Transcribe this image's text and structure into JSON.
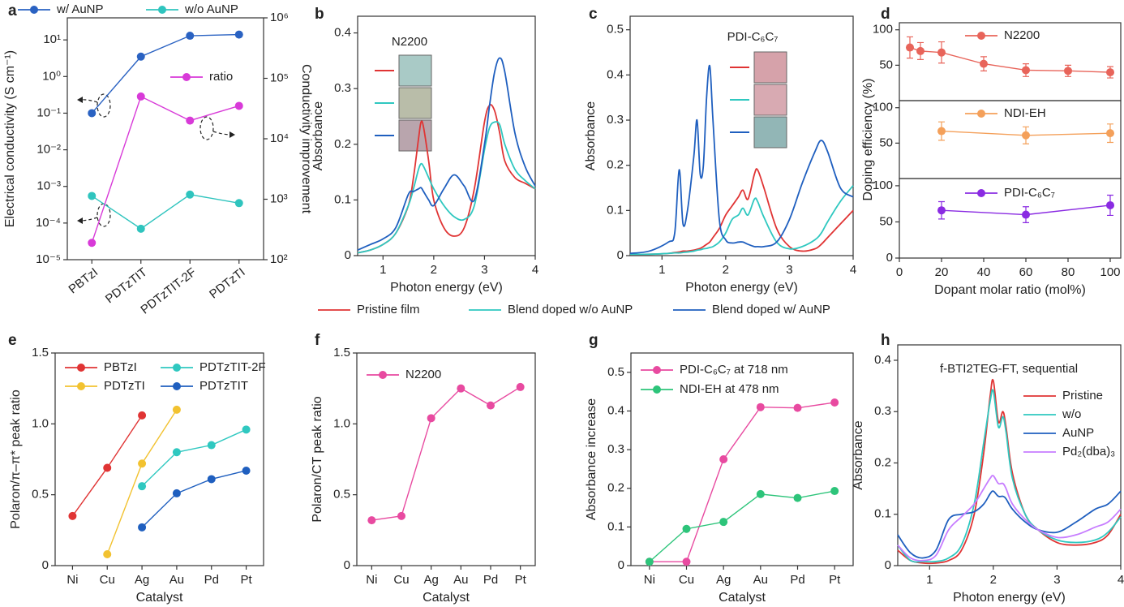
{
  "chart_data": [
    {
      "type": "line",
      "label": "a",
      "legend": "top",
      "categories": [
        "PBTzI",
        "PDTzTIT",
        "PDTzTIT-2F",
        "PDTzTI"
      ],
      "y_scale": "log",
      "ylim": [
        1e-05,
        40
      ],
      "yticks": [
        {
          "value": 1e-05,
          "label": "10⁻⁵"
        },
        {
          "value": 0.0001,
          "label": "10⁻⁴"
        },
        {
          "value": 0.001,
          "label": "10⁻³"
        },
        {
          "value": 0.01,
          "label": "10⁻²"
        },
        {
          "value": 0.1,
          "label": "10⁻¹"
        },
        {
          "value": 1,
          "label": "10⁰"
        },
        {
          "value": 10,
          "label": "10¹"
        }
      ],
      "y2_scale": "log",
      "y2lim": [
        100,
        1000000
      ],
      "y2ticks": [
        {
          "value": 100,
          "label": "10²"
        },
        {
          "value": 1000,
          "label": "10³"
        },
        {
          "value": 10000,
          "label": "10⁴"
        },
        {
          "value": 100000,
          "label": "10⁵"
        },
        {
          "value": 1000000,
          "label": "10⁶"
        }
      ],
      "y_label": "Electrical conductivity (S cm⁻¹)",
      "y2_label": "Conductivity improvement",
      "series": [
        {
          "name": "w/ AuNP",
          "color": "#2a62c2",
          "markers": true,
          "values": [
            0.1,
            3.5,
            13,
            14
          ]
        },
        {
          "name": "w/o AuNP",
          "color": "#2fc4be",
          "markers": true,
          "values": [
            0.00055,
            7e-05,
            0.0006,
            0.00035
          ]
        },
        {
          "name": "ratio",
          "color": "#d83ad8",
          "markers": true,
          "axis": "y2",
          "values": [
            190,
            50000,
            20000,
            35000
          ]
        }
      ]
    },
    {
      "type": "line",
      "label": "b",
      "title": "N2200",
      "legend": "bottom",
      "x": [
        0.5,
        0.75,
        1,
        1.25,
        1.5,
        1.6,
        1.7,
        1.75,
        1.8,
        1.9,
        2,
        2.2,
        2.4,
        2.6,
        2.8,
        3,
        3.1,
        3.2,
        3.3,
        3.4,
        3.6,
        3.8,
        4
      ],
      "xlim": [
        0.5,
        4
      ],
      "xticks": [
        1,
        2,
        3,
        4
      ],
      "ylim": [
        0,
        0.43
      ],
      "yticks": [
        0,
        0.1,
        0.2,
        0.3,
        0.4
      ],
      "x_label": "Photon energy (eV)",
      "y_label": "Absorbance",
      "series": [
        {
          "name": "Pristine film",
          "color": "#e03434",
          "values": [
            0.005,
            0.01,
            0.02,
            0.04,
            0.09,
            0.14,
            0.21,
            0.24,
            0.23,
            0.17,
            0.1,
            0.05,
            0.035,
            0.05,
            0.12,
            0.24,
            0.27,
            0.26,
            0.22,
            0.17,
            0.14,
            0.13,
            0.12
          ]
        },
        {
          "name": "Blend doped w/o AuNP",
          "color": "#2fc8c0",
          "values": [
            0.005,
            0.01,
            0.02,
            0.04,
            0.09,
            0.12,
            0.155,
            0.165,
            0.16,
            0.14,
            0.12,
            0.09,
            0.07,
            0.065,
            0.09,
            0.19,
            0.23,
            0.24,
            0.235,
            0.2,
            0.155,
            0.135,
            0.12
          ]
        },
        {
          "name": "Blend doped w/ AuNP",
          "color": "#1f5fbf",
          "values": [
            0.01,
            0.02,
            0.03,
            0.05,
            0.11,
            0.115,
            0.12,
            0.122,
            0.115,
            0.1,
            0.09,
            0.12,
            0.145,
            0.125,
            0.1,
            0.2,
            0.27,
            0.33,
            0.355,
            0.33,
            0.22,
            0.16,
            0.125
          ]
        }
      ]
    },
    {
      "type": "line",
      "label": "c",
      "title": "PDI-C₆C₇",
      "x": [
        0.5,
        0.8,
        1.1,
        1.2,
        1.27,
        1.33,
        1.4,
        1.5,
        1.55,
        1.6,
        1.65,
        1.7,
        1.75,
        1.8,
        1.9,
        2.0,
        2.1,
        2.2,
        2.27,
        2.35,
        2.45,
        2.5,
        2.6,
        2.8,
        3.0,
        3.2,
        3.4,
        3.5,
        3.6,
        3.8,
        4.0
      ],
      "xlim": [
        0.5,
        4
      ],
      "xticks": [
        1,
        2,
        3,
        4
      ],
      "ylim": [
        0,
        0.53
      ],
      "yticks": [
        0,
        0.1,
        0.2,
        0.3,
        0.4,
        0.5
      ],
      "x_label": "Photon energy (eV)",
      "y_label": "Absorbance",
      "series": [
        {
          "color": "#e03434",
          "values": [
            0.003,
            0.003,
            0.005,
            0.007,
            0.008,
            0.01,
            0.01,
            0.012,
            0.014,
            0.016,
            0.02,
            0.025,
            0.03,
            0.04,
            0.06,
            0.09,
            0.11,
            0.13,
            0.145,
            0.125,
            0.18,
            0.19,
            0.15,
            0.06,
            0.02,
            0.01,
            0.015,
            0.025,
            0.04,
            0.07,
            0.1
          ]
        },
        {
          "color": "#2fc8c0",
          "values": [
            0.003,
            0.003,
            0.005,
            0.006,
            0.006,
            0.007,
            0.008,
            0.01,
            0.012,
            0.013,
            0.015,
            0.016,
            0.018,
            0.02,
            0.03,
            0.05,
            0.08,
            0.09,
            0.105,
            0.09,
            0.125,
            0.12,
            0.085,
            0.03,
            0.015,
            0.02,
            0.035,
            0.05,
            0.075,
            0.12,
            0.155
          ]
        },
        {
          "color": "#1f5fbf",
          "values": [
            0.005,
            0.01,
            0.03,
            0.05,
            0.19,
            0.07,
            0.1,
            0.22,
            0.3,
            0.18,
            0.2,
            0.35,
            0.42,
            0.3,
            0.08,
            0.035,
            0.028,
            0.03,
            0.03,
            0.025,
            0.02,
            0.02,
            0.02,
            0.03,
            0.08,
            0.16,
            0.23,
            0.255,
            0.23,
            0.15,
            0.13
          ]
        }
      ]
    },
    {
      "type": "line",
      "label": "d",
      "legend": "upper-center",
      "xlim": [
        0,
        105
      ],
      "ylim": [
        0,
        110
      ],
      "yticks": [
        50,
        100
      ],
      "series": [
        {
          "name": "N2200",
          "color": "#e8645a",
          "markers": true,
          "x": [
            5,
            10,
            20,
            40,
            60,
            80,
            100
          ],
          "values": [
            75,
            70,
            68,
            52,
            43,
            42,
            40
          ],
          "errors": [
            15,
            12,
            15,
            10,
            9,
            8,
            8
          ]
        }
      ]
    },
    {
      "type": "line",
      "legend": "upper-center",
      "xlim": [
        0,
        105
      ],
      "ylim": [
        0,
        110
      ],
      "yticks": [
        50,
        100
      ],
      "y_label": "Doping efficiency (%)",
      "series": [
        {
          "name": "NDI-EH",
          "color": "#f4a05a",
          "markers": true,
          "x": [
            20,
            60,
            100
          ],
          "values": [
            67,
            61,
            64
          ],
          "errors": [
            13,
            12,
            13
          ]
        }
      ]
    },
    {
      "type": "line",
      "legend": "upper-center",
      "xlim": [
        0,
        105
      ],
      "xticks": [
        0,
        20,
        40,
        60,
        80,
        100
      ],
      "ylim": [
        0,
        110
      ],
      "yticks": [
        0,
        50,
        100
      ],
      "x_label": "Dopant molar ratio (mol%)",
      "series": [
        {
          "name": "PDI-C₆C₇",
          "color": "#8a2be2",
          "markers": true,
          "x": [
            20,
            60,
            100
          ],
          "values": [
            66,
            60,
            73
          ],
          "errors": [
            12,
            11,
            14
          ]
        }
      ]
    },
    {
      "type": "line",
      "label": "e",
      "legend": "upper-left",
      "categories": [
        "Ni",
        "Cu",
        "Ag",
        "Au",
        "Pd",
        "Pt"
      ],
      "ylim": [
        0,
        1.5
      ],
      "yticks": [
        0,
        0.5,
        {
          "value": 1,
          "label": "1.0"
        },
        1.5
      ],
      "x_label": "Catalyst",
      "y_label": "Polaron/π–π* peak ratio",
      "series": [
        {
          "name": "PBTzI",
          "color": "#e03434",
          "markers": true,
          "values": [
            0.35,
            0.69,
            1.06,
            null,
            null,
            null
          ]
        },
        {
          "name": "PDTzTI",
          "color": "#f2c230",
          "markers": true,
          "values": [
            null,
            0.08,
            0.72,
            1.1,
            null,
            null
          ]
        },
        {
          "name": "PDTzTIT-2F",
          "color": "#2fc8c0",
          "markers": true,
          "values": [
            null,
            null,
            0.56,
            0.8,
            0.85,
            0.96
          ]
        },
        {
          "name": "PDTzTIT",
          "color": "#1f5fbf",
          "markers": true,
          "values": [
            null,
            null,
            0.27,
            0.51,
            0.61,
            0.67
          ]
        }
      ]
    },
    {
      "type": "line",
      "label": "f",
      "legend": "upper-left",
      "categories": [
        "Ni",
        "Cu",
        "Ag",
        "Au",
        "Pd",
        "Pt"
      ],
      "ylim": [
        0,
        1.5
      ],
      "yticks": [
        0,
        0.5,
        {
          "value": 1,
          "label": "1.0"
        },
        1.5
      ],
      "x_label": "Catalyst",
      "y_label": "Polaron/CT peak ratio",
      "series": [
        {
          "name": "N2200",
          "color": "#e84aa0",
          "markers": true,
          "values": [
            0.32,
            0.35,
            1.04,
            1.25,
            1.13,
            1.26
          ]
        }
      ]
    },
    {
      "type": "line",
      "label": "g",
      "legend": "upper-left",
      "categories": [
        "Ni",
        "Cu",
        "Ag",
        "Au",
        "Pd",
        "Pt"
      ],
      "ylim": [
        0,
        0.55
      ],
      "yticks": [
        0,
        0.1,
        0.2,
        0.3,
        0.4,
        0.5
      ],
      "x_label": "Catalyst",
      "y_label": "Absorbance increase",
      "series": [
        {
          "name": "PDI-C₆C₇ at 718 nm",
          "color": "#e84aa0",
          "markers": true,
          "values": [
            0.01,
            0.01,
            0.275,
            0.41,
            0.408,
            0.422
          ]
        },
        {
          "name": "NDI-EH at 478 nm",
          "color": "#2dc47a",
          "markers": true,
          "values": [
            0.01,
            0.095,
            0.113,
            0.185,
            0.175,
            0.193
          ]
        }
      ]
    },
    {
      "type": "line",
      "label": "h",
      "title": "f-BTI2TEG-FT, sequential",
      "legend": "upper-right",
      "x": [
        0.5,
        0.7,
        0.9,
        1.1,
        1.3,
        1.5,
        1.7,
        1.85,
        1.95,
        2.0,
        2.08,
        2.15,
        2.2,
        2.3,
        2.5,
        2.7,
        3.0,
        3.3,
        3.6,
        3.8,
        4.0
      ],
      "xlim": [
        0.5,
        4
      ],
      "xticks": [
        1,
        2,
        3,
        4
      ],
      "ylim": [
        0,
        0.43
      ],
      "yticks": [
        0,
        0.1,
        0.2,
        0.3,
        0.4
      ],
      "x_label": "Photon energy (eV)",
      "y_label": "Absorbance",
      "series": [
        {
          "name": "Pristine",
          "color": "#e03434",
          "values": [
            0.03,
            0.01,
            0.005,
            0.005,
            0.01,
            0.03,
            0.1,
            0.22,
            0.33,
            0.36,
            0.28,
            0.3,
            0.27,
            0.18,
            0.1,
            0.07,
            0.045,
            0.04,
            0.045,
            0.06,
            0.1
          ]
        },
        {
          "name": "w/o",
          "color": "#2fc8c0",
          "values": [
            0.04,
            0.01,
            0.008,
            0.008,
            0.015,
            0.04,
            0.12,
            0.24,
            0.32,
            0.34,
            0.27,
            0.29,
            0.26,
            0.17,
            0.1,
            0.07,
            0.05,
            0.045,
            0.05,
            0.065,
            0.095
          ]
        },
        {
          "name": "AuNP",
          "color": "#1f5fbf",
          "values": [
            0.06,
            0.025,
            0.015,
            0.03,
            0.09,
            0.1,
            0.105,
            0.12,
            0.14,
            0.145,
            0.135,
            0.135,
            0.13,
            0.11,
            0.085,
            0.07,
            0.065,
            0.085,
            0.11,
            0.12,
            0.145
          ]
        },
        {
          "name": "Pd₂(dba)₃",
          "color": "#c77dff",
          "values": [
            0.04,
            0.015,
            0.01,
            0.02,
            0.07,
            0.095,
            0.12,
            0.15,
            0.17,
            0.175,
            0.16,
            0.16,
            0.15,
            0.12,
            0.09,
            0.07,
            0.055,
            0.06,
            0.075,
            0.085,
            0.11
          ]
        }
      ]
    }
  ]
}
